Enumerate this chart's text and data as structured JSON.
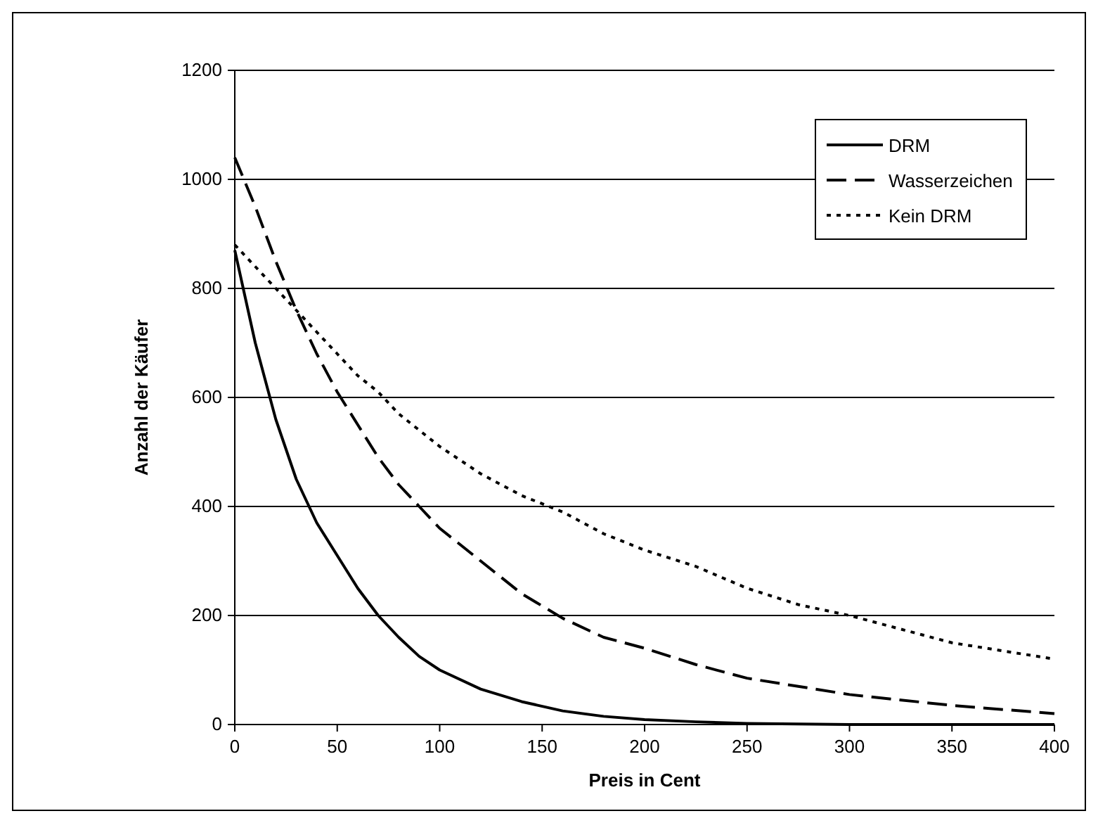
{
  "chart_data": {
    "type": "line",
    "xlabel": "Preis in Cent",
    "ylabel": "Anzahl der Käufer",
    "x": [
      0,
      10,
      20,
      30,
      40,
      50,
      60,
      70,
      80,
      90,
      100,
      120,
      140,
      160,
      180,
      200,
      225,
      250,
      275,
      300,
      350,
      400
    ],
    "xlim": [
      0,
      400
    ],
    "xticks": [
      0,
      50,
      100,
      150,
      200,
      250,
      300,
      350,
      400
    ],
    "ylim": [
      0,
      1200
    ],
    "yticks": [
      0,
      200,
      400,
      600,
      800,
      1000,
      1200
    ],
    "grid": "y",
    "legend": "top right",
    "marker": "none",
    "series": [
      {
        "name": "DRM",
        "color": "#000000",
        "line_style": "solid",
        "values": [
          870,
          700,
          560,
          450,
          370,
          310,
          250,
          200,
          160,
          125,
          100,
          65,
          42,
          25,
          15,
          9,
          5,
          2,
          1,
          0,
          0,
          0
        ]
      },
      {
        "name": "Wasserzeichen",
        "color": "#000000",
        "line_style": "dashed",
        "values": [
          1040,
          950,
          850,
          760,
          680,
          610,
          550,
          490,
          440,
          400,
          360,
          300,
          240,
          195,
          160,
          140,
          110,
          85,
          70,
          55,
          35,
          20
        ]
      },
      {
        "name": "Kein DRM",
        "color": "#000000",
        "line_style": "dotted",
        "values": [
          880,
          840,
          800,
          760,
          720,
          680,
          640,
          610,
          570,
          540,
          510,
          460,
          420,
          390,
          350,
          320,
          290,
          250,
          220,
          200,
          150,
          120
        ]
      }
    ]
  }
}
